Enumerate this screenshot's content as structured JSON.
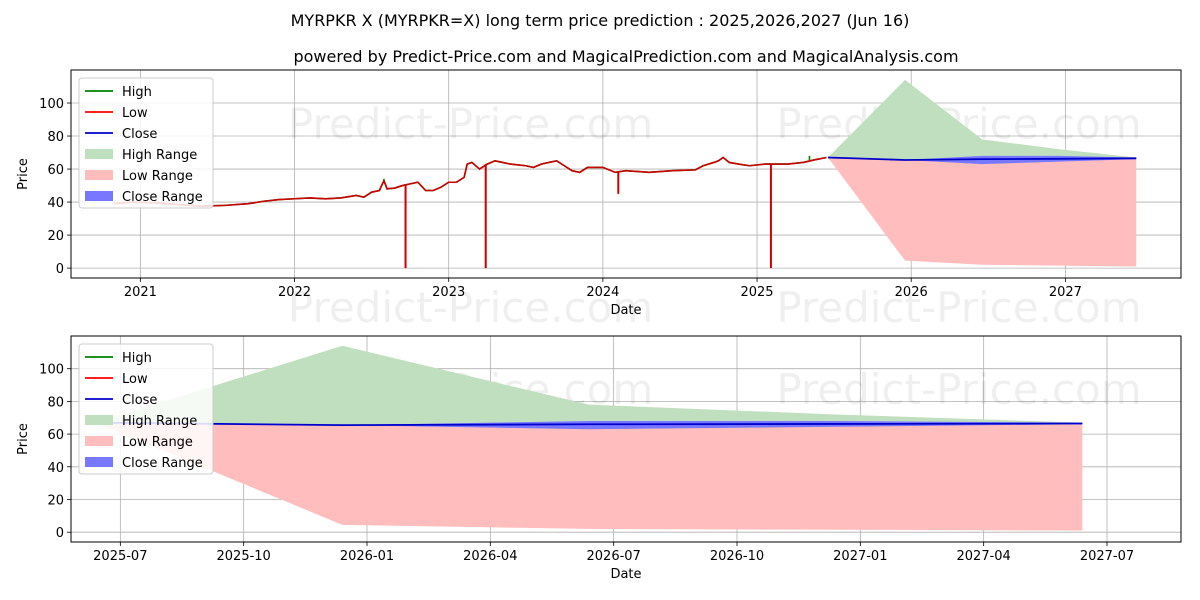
{
  "chart_data": [
    {
      "type": "line",
      "title": "MYRPKR X (MYRPKR=X) long term price prediction : 2025,2026,2027 (Jun 16)",
      "subtitle": "powered by Predict-Price.com and MagicalPrediction.com and MagicalAnalysis.com",
      "xlabel": "Date",
      "ylabel": "Price",
      "xlim": [
        2020.55,
        2027.75
      ],
      "ylim": [
        -6,
        120
      ],
      "xticks": [
        {
          "v": 2021,
          "label": "2021"
        },
        {
          "v": 2022,
          "label": "2022"
        },
        {
          "v": 2023,
          "label": "2023"
        },
        {
          "v": 2024,
          "label": "2024"
        },
        {
          "v": 2025,
          "label": "2025"
        },
        {
          "v": 2026,
          "label": "2026"
        },
        {
          "v": 2027,
          "label": "2027"
        }
      ],
      "yticks": [
        0,
        20,
        40,
        60,
        80,
        100
      ],
      "watermark": "Predict-Price.com",
      "legend": [
        "High",
        "Low",
        "Close",
        "High Range",
        "Low Range",
        "Close Range"
      ],
      "history": [
        [
          2020.83,
          39
        ],
        [
          2020.95,
          40
        ],
        [
          2021.1,
          39.5
        ],
        [
          2021.25,
          38.5
        ],
        [
          2021.4,
          37.5
        ],
        [
          2021.55,
          38
        ],
        [
          2021.7,
          39
        ],
        [
          2021.8,
          40.5
        ],
        [
          2021.9,
          41.5
        ],
        [
          2022.0,
          42
        ],
        [
          2022.1,
          42.5
        ],
        [
          2022.2,
          42
        ],
        [
          2022.3,
          42.5
        ],
        [
          2022.4,
          44
        ],
        [
          2022.45,
          43
        ],
        [
          2022.5,
          46
        ],
        [
          2022.55,
          47
        ],
        [
          2022.58,
          53
        ],
        [
          2022.6,
          48
        ],
        [
          2022.65,
          48.5
        ],
        [
          2022.7,
          50
        ],
        [
          2022.75,
          51
        ],
        [
          2022.8,
          52
        ],
        [
          2022.85,
          47
        ],
        [
          2022.9,
          47
        ],
        [
          2022.95,
          49
        ],
        [
          2023.0,
          52
        ],
        [
          2023.05,
          52
        ],
        [
          2023.1,
          55
        ],
        [
          2023.12,
          63
        ],
        [
          2023.15,
          64
        ],
        [
          2023.2,
          60
        ],
        [
          2023.25,
          63
        ],
        [
          2023.3,
          65
        ],
        [
          2023.35,
          64
        ],
        [
          2023.4,
          63
        ],
        [
          2023.5,
          62
        ],
        [
          2023.55,
          61
        ],
        [
          2023.6,
          63
        ],
        [
          2023.65,
          64
        ],
        [
          2023.7,
          65
        ],
        [
          2023.75,
          62
        ],
        [
          2023.8,
          59
        ],
        [
          2023.85,
          58
        ],
        [
          2023.9,
          61
        ],
        [
          2024.0,
          61
        ],
        [
          2024.08,
          58
        ],
        [
          2024.15,
          59
        ],
        [
          2024.3,
          58
        ],
        [
          2024.45,
          59
        ],
        [
          2024.6,
          59.5
        ],
        [
          2024.65,
          62
        ],
        [
          2024.72,
          64
        ],
        [
          2024.75,
          65
        ],
        [
          2024.78,
          67
        ],
        [
          2024.82,
          64
        ],
        [
          2024.88,
          63
        ],
        [
          2024.95,
          62
        ],
        [
          2025.05,
          63
        ],
        [
          2025.1,
          63
        ],
        [
          2025.2,
          63
        ],
        [
          2025.3,
          64
        ],
        [
          2025.37,
          65.5
        ],
        [
          2025.45,
          67
        ]
      ],
      "spikes": [
        [
          2022.72,
          0
        ],
        [
          2023.24,
          0
        ],
        [
          2024.1,
          45
        ],
        [
          2025.09,
          0
        ]
      ],
      "high_spikes": [
        [
          2022.58,
          54
        ],
        [
          2025.34,
          68
        ]
      ],
      "forecast": {
        "x": [
          2025.46,
          2025.96,
          2026.46,
          2026.96,
          2027.46
        ],
        "high": [
          67,
          114,
          78,
          72,
          67
        ],
        "low": [
          67,
          4.5,
          2,
          1.5,
          1
        ],
        "close_lo": [
          67,
          65.5,
          63,
          64.5,
          66
        ],
        "close_hi": [
          67,
          65.5,
          68,
          68,
          67
        ],
        "close": [
          67,
          65.5,
          66,
          66.2,
          66.5
        ]
      }
    },
    {
      "type": "area",
      "xlabel": "Date",
      "ylabel": "Price",
      "xlim": [
        2025.4,
        2027.65
      ],
      "ylim": [
        -6,
        120
      ],
      "xticks": [
        {
          "v": 2025.5,
          "label": "2025-07"
        },
        {
          "v": 2025.75,
          "label": "2025-10"
        },
        {
          "v": 2026.0,
          "label": "2026-01"
        },
        {
          "v": 2026.25,
          "label": "2026-04"
        },
        {
          "v": 2026.5,
          "label": "2026-07"
        },
        {
          "v": 2026.75,
          "label": "2026-10"
        },
        {
          "v": 2027.0,
          "label": "2027-01"
        },
        {
          "v": 2027.25,
          "label": "2027-04"
        },
        {
          "v": 2027.5,
          "label": "2027-07"
        }
      ],
      "yticks": [
        0,
        20,
        40,
        60,
        80,
        100
      ],
      "watermark": "Predict-Price.com",
      "legend": [
        "High",
        "Low",
        "Close",
        "High Range",
        "Low Range",
        "Close Range"
      ],
      "forecast": {
        "x": [
          2025.45,
          2025.95,
          2026.45,
          2026.95,
          2027.45
        ],
        "high": [
          67,
          114,
          78,
          72,
          67
        ],
        "low": [
          67,
          4.5,
          2,
          1.5,
          1
        ],
        "close_lo": [
          67,
          65.5,
          63,
          64.5,
          66
        ],
        "close_hi": [
          67,
          65.5,
          68,
          68,
          67
        ],
        "close": [
          67,
          65.5,
          66,
          66.2,
          66.5
        ]
      }
    }
  ]
}
